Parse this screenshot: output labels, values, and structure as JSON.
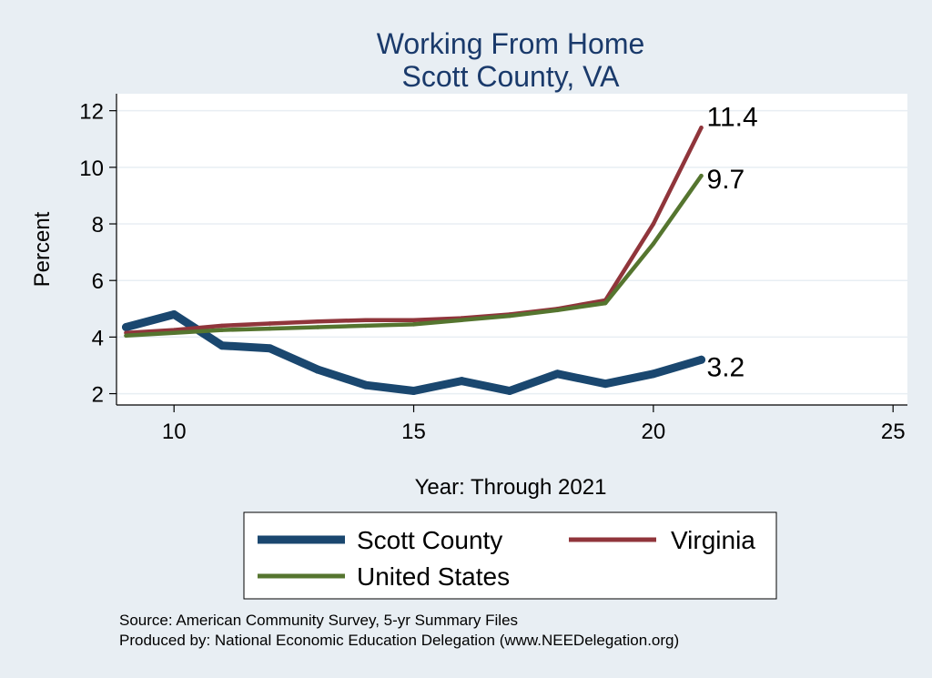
{
  "chart_data": {
    "type": "line",
    "title": "Working From Home",
    "subtitle": "Scott County, VA",
    "xlabel": "Year: Through 2021",
    "ylabel": "Percent",
    "xlim": [
      8.8,
      25.3
    ],
    "ylim": [
      1.6,
      12.6
    ],
    "xticks": [
      10,
      15,
      20,
      25
    ],
    "yticks": [
      2,
      4,
      6,
      8,
      10,
      12
    ],
    "grid": true,
    "legend_position": "bottom",
    "series": [
      {
        "name": "Scott County",
        "color": "#1a476f",
        "x": [
          9,
          10,
          11,
          12,
          13,
          14,
          15,
          16,
          17,
          18,
          19,
          20,
          21
        ],
        "y": [
          4.35,
          4.8,
          3.7,
          3.6,
          2.85,
          2.3,
          2.1,
          2.45,
          2.1,
          2.7,
          2.35,
          2.7,
          3.2
        ],
        "end_label": "3.2"
      },
      {
        "name": "Virginia",
        "color": "#90353b",
        "x": [
          9,
          10,
          11,
          12,
          13,
          14,
          15,
          16,
          17,
          18,
          19,
          20,
          21
        ],
        "y": [
          4.15,
          4.25,
          4.4,
          4.48,
          4.55,
          4.6,
          4.6,
          4.67,
          4.8,
          5.0,
          5.3,
          8.0,
          11.4
        ],
        "end_label": "11.4"
      },
      {
        "name": "United States",
        "color": "#55752f",
        "x": [
          9,
          10,
          11,
          12,
          13,
          14,
          15,
          16,
          17,
          18,
          19,
          20,
          21
        ],
        "y": [
          4.05,
          4.15,
          4.25,
          4.3,
          4.35,
          4.4,
          4.45,
          4.6,
          4.75,
          4.95,
          5.2,
          7.3,
          9.7
        ],
        "end_label": "9.7"
      }
    ],
    "notes": [
      "Source: American Community Survey, 5-yr Summary Files",
      "Produced by: National Economic Education Delegation (www.NEEDelegation.org)"
    ]
  }
}
